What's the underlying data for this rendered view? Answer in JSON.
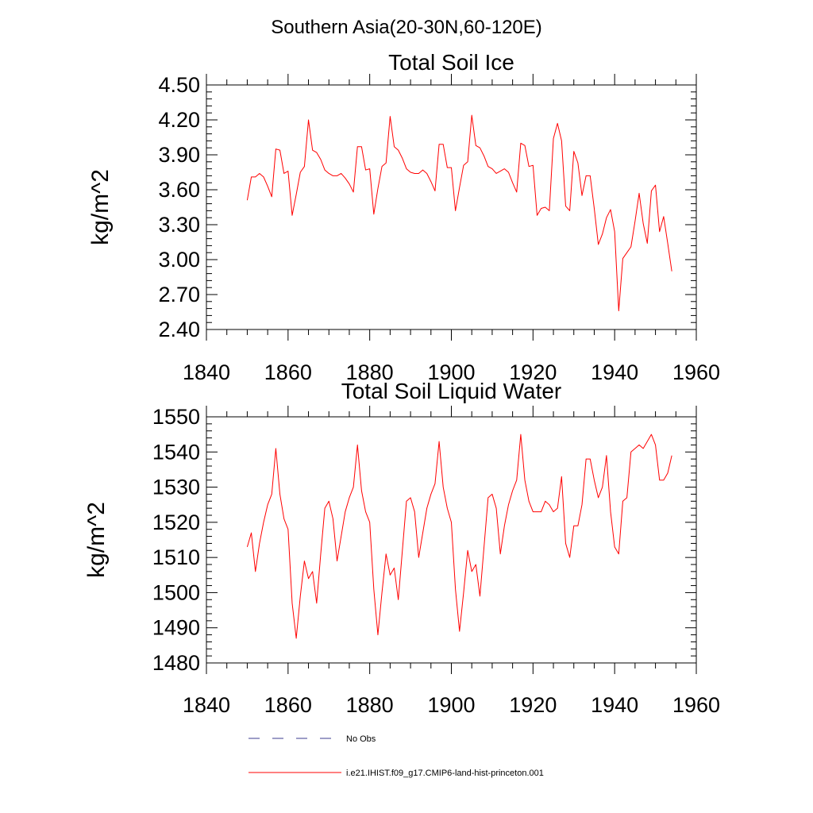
{
  "figure": {
    "title": "Southern Asia(20-30N,60-120E)"
  },
  "colors": {
    "model_line": "#ff0000",
    "obs_line": "#3b3b8f",
    "axis": "#000000"
  },
  "chart_data": [
    {
      "type": "line",
      "title": "Total Soil Ice",
      "xlabel": "",
      "ylabel": "kg/m^2",
      "xlim": [
        1840,
        1960
      ],
      "ylim": [
        2.4,
        4.5
      ],
      "xticks": [
        1840,
        1860,
        1880,
        1900,
        1920,
        1940,
        1960
      ],
      "yticks": [
        2.4,
        2.7,
        3.0,
        3.3,
        3.6,
        3.9,
        4.2,
        4.5
      ],
      "ytick_labels": [
        "2.40",
        "2.70",
        "3.00",
        "3.30",
        "3.60",
        "3.90",
        "4.20",
        "4.50"
      ],
      "xtick_labels": [
        "1840",
        "1860",
        "1880",
        "1900",
        "1920",
        "1940",
        "1960"
      ],
      "grid": false,
      "series": [
        {
          "name": "i.e21.IHIST.f09_g17.CMIP6-land-hist-princeton.001",
          "x_start": 1850,
          "x_step": 1,
          "values": [
            3.51,
            3.71,
            3.71,
            3.74,
            3.71,
            3.63,
            3.54,
            3.95,
            3.94,
            3.74,
            3.76,
            3.38,
            3.56,
            3.75,
            3.8,
            4.2,
            3.94,
            3.92,
            3.86,
            3.77,
            3.74,
            3.72,
            3.72,
            3.74,
            3.7,
            3.65,
            3.58,
            3.97,
            3.97,
            3.77,
            3.78,
            3.39,
            3.61,
            3.8,
            3.83,
            4.23,
            3.97,
            3.94,
            3.87,
            3.78,
            3.75,
            3.74,
            3.74,
            3.77,
            3.74,
            3.67,
            3.59,
            3.99,
            3.99,
            3.79,
            3.79,
            3.42,
            3.62,
            3.81,
            3.84,
            4.24,
            3.98,
            3.96,
            3.89,
            3.8,
            3.78,
            3.74,
            3.76,
            3.78,
            3.75,
            3.66,
            3.58,
            4.0,
            3.98,
            3.8,
            3.81,
            3.38,
            3.44,
            3.45,
            3.42,
            4.04,
            4.17,
            4.02,
            3.46,
            3.42,
            3.93,
            3.83,
            3.55,
            3.72,
            3.72,
            3.44,
            3.13,
            3.22,
            3.36,
            3.43,
            3.24,
            2.56,
            3.01,
            3.06,
            3.11,
            3.33,
            3.57,
            3.31,
            3.14,
            3.59,
            3.64,
            3.24,
            3.37,
            3.14,
            2.9
          ]
        }
      ]
    },
    {
      "type": "line",
      "title": "Total Soil Liquid Water",
      "xlabel": "",
      "ylabel": "kg/m^2",
      "xlim": [
        1840,
        1960
      ],
      "ylim": [
        1480,
        1550
      ],
      "xticks": [
        1840,
        1860,
        1880,
        1900,
        1920,
        1940,
        1960
      ],
      "yticks": [
        1480,
        1490,
        1500,
        1510,
        1520,
        1530,
        1540,
        1550
      ],
      "ytick_labels": [
        "1480",
        "1490",
        "1500",
        "1510",
        "1520",
        "1530",
        "1540",
        "1550"
      ],
      "xtick_labels": [
        "1840",
        "1860",
        "1880",
        "1900",
        "1920",
        "1940",
        "1960"
      ],
      "grid": false,
      "series": [
        {
          "name": "i.e21.IHIST.f09_g17.CMIP6-land-hist-princeton.001",
          "x_start": 1850,
          "x_step": 1,
          "values": [
            1513,
            1517,
            1506,
            1514,
            1520,
            1525,
            1528,
            1541,
            1528,
            1521,
            1518,
            1497,
            1487,
            1499,
            1509,
            1504,
            1506,
            1497,
            1511,
            1524,
            1526,
            1521,
            1509,
            1516,
            1523,
            1527,
            1530,
            1542,
            1529,
            1523,
            1520,
            1501,
            1488,
            1500,
            1511,
            1505,
            1507,
            1498,
            1512,
            1526,
            1527,
            1523,
            1510,
            1517,
            1524,
            1528,
            1531,
            1543,
            1530,
            1524,
            1520,
            1501,
            1489,
            1500,
            1512,
            1506,
            1508,
            1499,
            1513,
            1527,
            1528,
            1524,
            1511,
            1519,
            1525,
            1529,
            1532,
            1545,
            1532,
            1526,
            1523,
            1523,
            1523,
            1526,
            1525,
            1523,
            1524,
            1533,
            1514,
            1510,
            1519,
            1519,
            1525,
            1538,
            1538,
            1532,
            1527,
            1530,
            1539,
            1523,
            1513,
            1511,
            1526,
            1527,
            1540,
            1541,
            1542,
            1541,
            1543,
            1545,
            1542,
            1532,
            1532,
            1534,
            1539
          ]
        }
      ]
    }
  ],
  "legend": {
    "placement": "bottom-left",
    "entries": [
      {
        "label": "No Obs",
        "style": "dashed"
      },
      {
        "label": "i.e21.IHIST.f09_g17.CMIP6-land-hist-princeton.001",
        "style": "solid"
      }
    ]
  }
}
